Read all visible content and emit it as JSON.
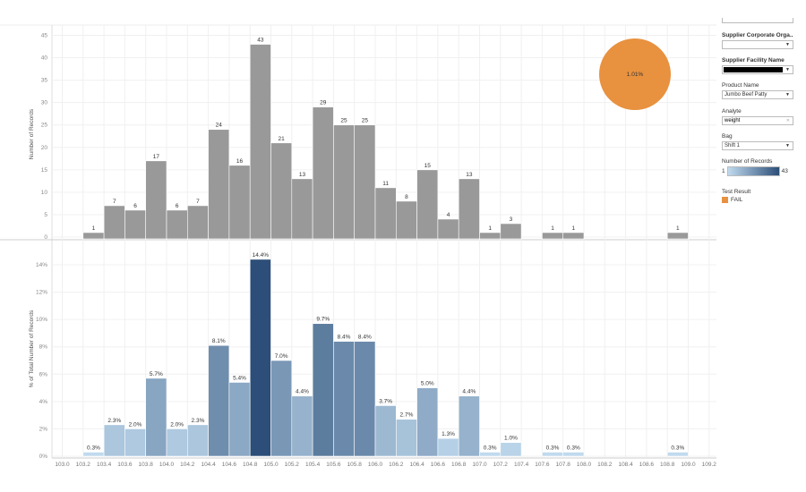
{
  "chart_data": [
    {
      "type": "bar",
      "ylabel": "Number of Records",
      "ylim": [
        0,
        45
      ],
      "yticks": [
        0,
        5,
        10,
        15,
        20,
        25,
        30,
        35,
        40,
        45
      ],
      "bin_width": 0.2,
      "bins": [
        103.2,
        103.4,
        103.6,
        103.8,
        104.0,
        104.2,
        104.4,
        104.6,
        104.8,
        105.0,
        105.2,
        105.4,
        105.6,
        105.8,
        106.0,
        106.2,
        106.4,
        106.6,
        106.8,
        107.0,
        107.2,
        107.6,
        107.8,
        108.8
      ],
      "values": [
        1,
        7,
        6,
        17,
        6,
        7,
        24,
        16,
        43,
        21,
        13,
        29,
        25,
        25,
        11,
        8,
        15,
        4,
        13,
        1,
        3,
        1,
        1,
        1
      ],
      "labels": [
        "1",
        "7",
        "6",
        "17",
        "6",
        "7",
        "24",
        "16",
        "43",
        "21",
        "13",
        "29",
        "25",
        "25",
        "11",
        "8",
        "15",
        "4",
        "13",
        "1",
        "3",
        "1",
        "1",
        "1"
      ],
      "color": "#999999",
      "pie": {
        "label": "1.01%",
        "color": "#e8913f",
        "category": "FAIL"
      }
    },
    {
      "type": "bar",
      "ylabel": "% of Total Number of Records",
      "ylim": [
        0,
        15
      ],
      "yticks": [
        0,
        2,
        4,
        6,
        8,
        10,
        12,
        14
      ],
      "ytick_labels": [
        "0%",
        "2%",
        "4%",
        "6%",
        "8%",
        "10%",
        "12%",
        "14%"
      ],
      "values": [
        0.3,
        2.3,
        2.0,
        5.7,
        2.0,
        2.3,
        8.1,
        5.4,
        14.4,
        7.0,
        4.4,
        9.7,
        8.4,
        8.4,
        3.7,
        2.7,
        5.0,
        1.3,
        4.4,
        0.3,
        1.0,
        0.3,
        0.3,
        0.3
      ],
      "labels": [
        "0.3%",
        "2.3%",
        "2.0%",
        "5.7%",
        "2.0%",
        "2.3%",
        "8.1%",
        "5.4%",
        "14.4%",
        "7.0%",
        "4.4%",
        "9.7%",
        "8.4%",
        "8.4%",
        "3.7%",
        "2.7%",
        "5.0%",
        "1.3%",
        "4.4%",
        "0.3%",
        "1.0%",
        "0.3%",
        "0.3%",
        "0.3%"
      ],
      "color_scale": {
        "min": 1,
        "max": 43,
        "from": "#c0daee",
        "to": "#2c4e78"
      }
    }
  ],
  "x_ticks": [
    "103.0",
    "103.2",
    "103.4",
    "103.6",
    "103.8",
    "104.0",
    "104.2",
    "104.4",
    "104.6",
    "104.8",
    "105.0",
    "105.2",
    "105.4",
    "105.6",
    "105.8",
    "106.0",
    "106.2",
    "106.4",
    "106.6",
    "106.8",
    "107.0",
    "107.2",
    "107.4",
    "107.6",
    "107.8",
    "108.0",
    "108.2",
    "108.4",
    "108.6",
    "108.8",
    "109.0",
    "109.2"
  ],
  "filters": {
    "supplier_org": {
      "label": "Supplier Corporate Orga...",
      "value": ""
    },
    "facility": {
      "label": "Supplier Facility Name",
      "value": ""
    },
    "product": {
      "label": "Product Name",
      "value": "Jumbo Beef Patty"
    },
    "analyte": {
      "label": "Analyte",
      "value": "weight"
    },
    "bag": {
      "label": "Bag",
      "value": "Shift 1"
    }
  },
  "legend": {
    "records_label": "Number of Records",
    "min": "1",
    "max": "43",
    "result_label": "Test Result",
    "result_item": "FAIL",
    "fail_color": "#e8913f"
  }
}
